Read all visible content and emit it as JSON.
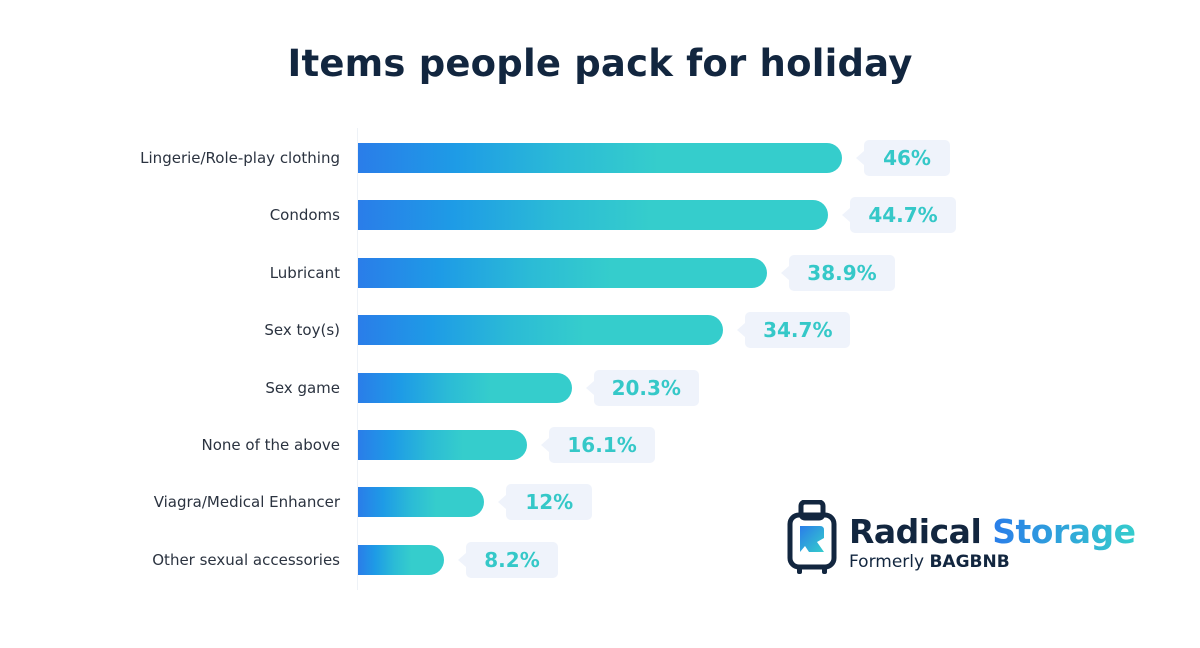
{
  "chart_data": {
    "type": "bar",
    "orientation": "horizontal",
    "title": "Items people pack for holiday",
    "categories": [
      "Lingerie/Role-play clothing",
      "Condoms",
      "Lubricant",
      "Sex toy(s)",
      "Sex game",
      "None of the above",
      "Viagra/Medical Enhancer",
      "Other sexual accessories"
    ],
    "values": [
      46,
      44.7,
      38.9,
      34.7,
      20.3,
      16.1,
      12,
      8.2
    ],
    "labels": [
      "46%",
      "44.7%",
      "38.9%",
      "34.7%",
      "20.3%",
      "16.1%",
      "12%",
      "8.2%"
    ],
    "xlabel": "",
    "ylabel": "",
    "unit": "%",
    "grid": false
  },
  "logo": {
    "name_1": "Radical",
    "name_2": "Storage",
    "sub_1": "Formerly",
    "sub_2": "BAGBNB"
  },
  "colors": {
    "bar_start": "#2a7de9",
    "bar_end": "#35cdcc",
    "title": "#12263f"
  }
}
